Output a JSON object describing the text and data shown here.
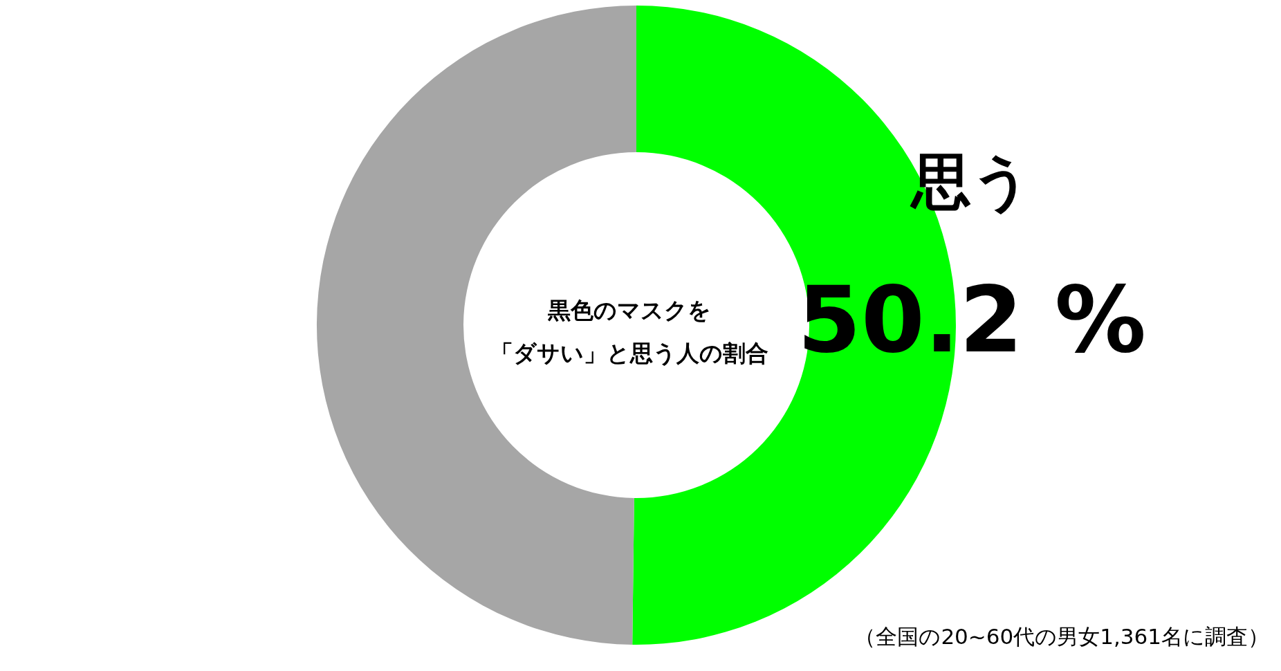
{
  "chart_data": {
    "type": "donut",
    "title": "黒色のマスクを「ダサい」と思う人の割合",
    "categories": [
      "思う",
      null
    ],
    "values": [
      50.2,
      49.8
    ],
    "colors": [
      "#00ff00",
      "#a6a6a6"
    ],
    "value_labels": [
      "50.2 %",
      null
    ],
    "annotations": [
      "（全国の20~60代の男女1,361名に調査）"
    ]
  }
}
